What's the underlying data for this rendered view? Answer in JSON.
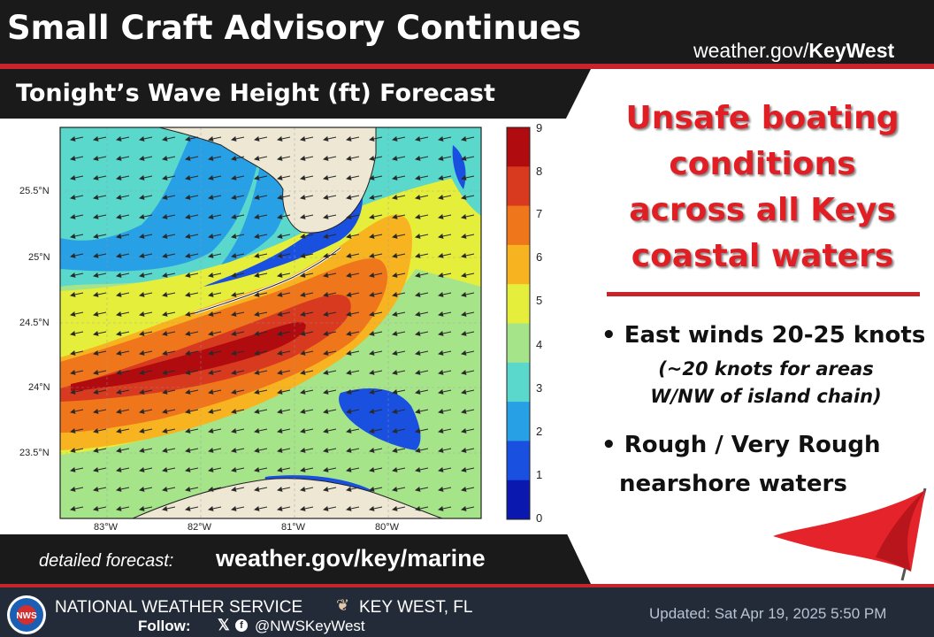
{
  "header": {
    "title": "Small Craft Advisory Continues",
    "site_prefix": "weather.gov/",
    "site_bold": "KeyWest"
  },
  "map_panel": {
    "title": "Tonight’s Wave Height (ft) Forecast",
    "lat_ticks": [
      "25.5°N",
      "25°N",
      "24.5°N",
      "24°N",
      "23.5°N"
    ],
    "lon_ticks": [
      "83°W",
      "82°W",
      "81°W",
      "80°W"
    ],
    "colorbar_ticks": [
      "9",
      "8",
      "7",
      "6",
      "5",
      "4",
      "3",
      "2",
      "1",
      "0"
    ],
    "colorbar_colors": [
      "#b00c10",
      "#d83a20",
      "#f0761c",
      "#f7b420",
      "#e6ee3c",
      "#a6e48a",
      "#5ad8cc",
      "#28a0e6",
      "#1a50e0",
      "#0a18b0"
    ]
  },
  "forecast_link": {
    "label": "detailed forecast:",
    "url": "weather.gov/key/marine"
  },
  "headline": {
    "lines": [
      "Unsafe boating",
      "conditions",
      "across all Keys",
      "coastal waters"
    ],
    "color": "#e01e24"
  },
  "bullets": [
    {
      "text": "East winds 20-25 knots"
    },
    {
      "text": "Rough / Very Rough"
    }
  ],
  "bullet1_note": [
    "(~20 knots for areas",
    "W/NW of island chain)"
  ],
  "bullet2_cont": "nearshore waters",
  "footer": {
    "office": "NATIONAL WEATHER SERVICE",
    "location": "KEY WEST, FL",
    "follow_label": "Follow:",
    "handle": "@NWSKeyWest",
    "updated": "Updated: Sat Apr 19, 2025 5:50 PM",
    "logo_text": "NWS"
  }
}
